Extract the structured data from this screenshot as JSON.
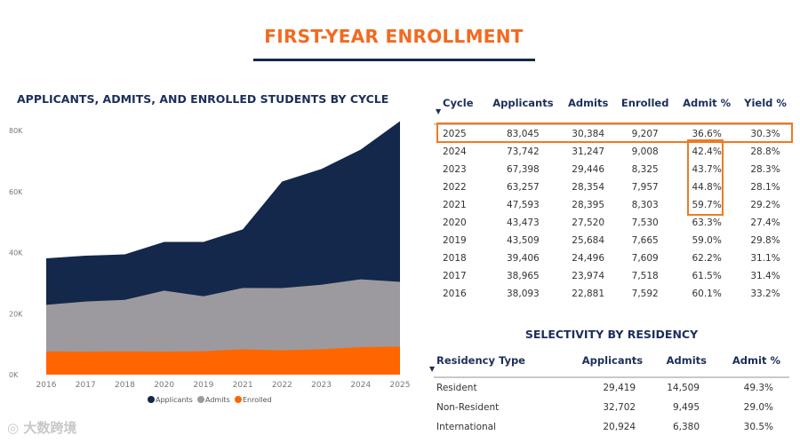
{
  "header": {
    "title": "FIRST-YEAR ENROLLMENT"
  },
  "chart_data": {
    "type": "area",
    "stacked": false,
    "title": "APPLICANTS, ADMITS, AND ENROLLED STUDENTS BY CYCLE",
    "categories": [
      "2016",
      "2017",
      "2018",
      "2020",
      "2019",
      "2021",
      "2022",
      "2023",
      "2024",
      "2025"
    ],
    "series": [
      {
        "name": "Applicants",
        "color": "#13284b",
        "values": [
          38093,
          38965,
          39406,
          43473,
          43509,
          47593,
          63257,
          67398,
          73742,
          83045
        ]
      },
      {
        "name": "Admits",
        "color": "#9c9a9e",
        "values": [
          22881,
          23974,
          24496,
          27520,
          25684,
          28395,
          28354,
          29446,
          31247,
          30384
        ]
      },
      {
        "name": "Enrolled",
        "color": "#ff6600",
        "values": [
          7592,
          7518,
          7609,
          7530,
          7665,
          8303,
          7957,
          8325,
          9008,
          9207
        ]
      }
    ],
    "yticks": [
      "0K",
      "20K",
      "40K",
      "60K",
      "80K"
    ],
    "ylim": [
      0,
      80000
    ],
    "legend": "bottom",
    "grid": false
  },
  "cycle_table": {
    "headers": [
      "Cycle",
      "Applicants",
      "Admits",
      "Enrolled",
      "Admit %",
      "Yield %"
    ],
    "rows": [
      [
        "2025",
        "83,045",
        "30,384",
        "9,207",
        "36.6%",
        "30.3%"
      ],
      [
        "2024",
        "73,742",
        "31,247",
        "9,008",
        "42.4%",
        "28.8%"
      ],
      [
        "2023",
        "67,398",
        "29,446",
        "8,325",
        "43.7%",
        "28.3%"
      ],
      [
        "2022",
        "63,257",
        "28,354",
        "7,957",
        "44.8%",
        "28.1%"
      ],
      [
        "2021",
        "47,593",
        "28,395",
        "8,303",
        "59.7%",
        "29.2%"
      ],
      [
        "2020",
        "43,473",
        "27,520",
        "7,530",
        "63.3%",
        "27.4%"
      ],
      [
        "2019",
        "43,509",
        "25,684",
        "7,665",
        "59.0%",
        "29.8%"
      ],
      [
        "2018",
        "39,406",
        "24,496",
        "7,609",
        "62.2%",
        "31.1%"
      ],
      [
        "2017",
        "38,965",
        "23,974",
        "7,518",
        "61.5%",
        "31.4%"
      ],
      [
        "2016",
        "38,093",
        "22,881",
        "7,592",
        "60.1%",
        "33.2%"
      ]
    ]
  },
  "residency": {
    "title": "SELECTIVITY BY RESIDENCY",
    "headers": [
      "Residency Type",
      "Applicants",
      "Admits",
      "Admit %"
    ],
    "rows": [
      [
        "Resident",
        "29,419",
        "14,509",
        "49.3%"
      ],
      [
        "Non-Resident",
        "32,702",
        "9,495",
        "29.0%"
      ],
      [
        "International",
        "20,924",
        "6,380",
        "30.5%"
      ]
    ]
  },
  "watermark": "大数跨境",
  "colors": {
    "accent": "#f26a21",
    "navy": "#13284b",
    "highlight": "#ee7b22"
  }
}
